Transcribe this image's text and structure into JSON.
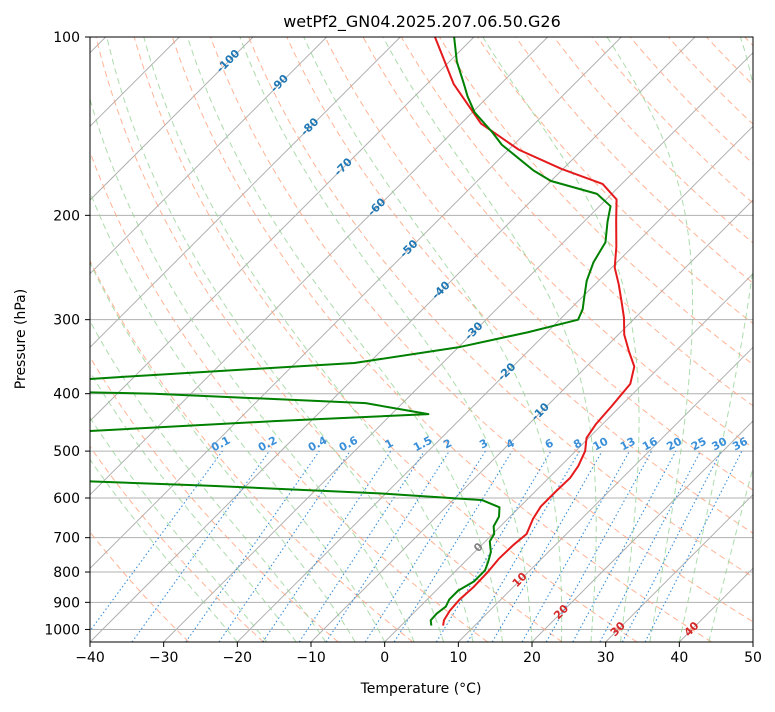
{
  "chart_data": {
    "type": "line",
    "subtype": "skew-t log-p diagram",
    "title": "wetPf2_GN04.2025.207.06.50.G26",
    "xlabel": "Temperature (°C)",
    "ylabel": "Pressure (hPa)",
    "xlim": [
      -40,
      50
    ],
    "ylim": [
      1050,
      100
    ],
    "y_scale": "log",
    "x_ticks": [
      -40,
      -30,
      -20,
      -10,
      0,
      10,
      20,
      30,
      40,
      50
    ],
    "y_ticks": [
      100,
      200,
      300,
      400,
      500,
      600,
      700,
      800,
      900,
      1000
    ],
    "grid": true,
    "series": [
      {
        "id": "temperature",
        "color": "#e41a1c",
        "points": [
          [
            5.7,
            985
          ],
          [
            5.1,
            965
          ],
          [
            4.6,
            930
          ],
          [
            4.4,
            890
          ],
          [
            4.6,
            850
          ],
          [
            4.5,
            800
          ],
          [
            4.2,
            760
          ],
          [
            4.3,
            720
          ],
          [
            4.6,
            690
          ],
          [
            3.4,
            650
          ],
          [
            2.8,
            620
          ],
          [
            2.8,
            585
          ],
          [
            2.9,
            555
          ],
          [
            2.4,
            530
          ],
          [
            1.3,
            500
          ],
          [
            -0.3,
            475
          ],
          [
            -0.9,
            450
          ],
          [
            -1.2,
            420
          ],
          [
            -1.7,
            385
          ],
          [
            -3.5,
            360
          ],
          [
            -6.2,
            340
          ],
          [
            -9.2,
            318
          ],
          [
            -11.5,
            298
          ],
          [
            -14,
            280
          ],
          [
            -16.7,
            262
          ],
          [
            -19.6,
            245
          ],
          [
            -22.2,
            226
          ],
          [
            -25.8,
            204
          ],
          [
            -28.6,
            188
          ],
          [
            -32.6,
            177
          ],
          [
            -40.2,
            167
          ],
          [
            -48.6,
            155
          ],
          [
            -57.3,
            140
          ],
          [
            -66.4,
            120
          ],
          [
            -75.3,
            100
          ]
        ]
      },
      {
        "id": "dewpoint",
        "color": "#008000",
        "points": [
          [
            4.1,
            985
          ],
          [
            3.3,
            965
          ],
          [
            3.2,
            940
          ],
          [
            3.5,
            915
          ],
          [
            3.0,
            890
          ],
          [
            3.0,
            860
          ],
          [
            3.9,
            830
          ],
          [
            3.9,
            795
          ],
          [
            3.2,
            770
          ],
          [
            2.2,
            740
          ],
          [
            0.6,
            710
          ],
          [
            0.2,
            690
          ],
          [
            -0.9,
            670
          ],
          [
            -1.5,
            645
          ],
          [
            -2.7,
            622
          ],
          [
            -6,
            605
          ],
          [
            -20,
            590
          ],
          [
            -45,
            572
          ],
          [
            -70,
            558
          ],
          [
            -95,
            544
          ],
          [
            -105,
            535
          ],
          [
            -85,
            475
          ],
          [
            -45,
            445
          ],
          [
            -25,
            433
          ],
          [
            -35,
            415
          ],
          [
            -65,
            400
          ],
          [
            -95,
            393
          ],
          [
            -72,
            375
          ],
          [
            -42,
            355
          ],
          [
            -30,
            334
          ],
          [
            -22.6,
            315
          ],
          [
            -17.5,
            300
          ],
          [
            -18.3,
            288
          ],
          [
            -19.7,
            275
          ],
          [
            -21.6,
            258
          ],
          [
            -23.2,
            240
          ],
          [
            -24.3,
            222
          ],
          [
            -26.8,
            205
          ],
          [
            -28.5,
            193
          ],
          [
            -32,
            184
          ],
          [
            -40,
            175
          ],
          [
            -43.8,
            168
          ],
          [
            -47.6,
            160
          ],
          [
            -51.6,
            152
          ],
          [
            -54.5,
            145
          ],
          [
            -59.7,
            134
          ],
          [
            -62.8,
            126
          ],
          [
            -65,
            120
          ],
          [
            -69,
            110
          ],
          [
            -72.7,
            100
          ]
        ]
      }
    ],
    "reference_lines": {
      "isotherm_color": "#b0b0b0",
      "dry_adiabat_color": "#ffa07a",
      "moist_adiabat_color": "#90d090",
      "mixing_ratio_color": "#3a8fd9",
      "dry_adiabat_label_color": "#d62728",
      "isotherm_label_color": "#1f77b4",
      "isotherm_labels": [
        -100,
        -90,
        -80,
        -70,
        -60,
        -50,
        -40,
        -30,
        -20,
        -10,
        0,
        10,
        20,
        30,
        40
      ],
      "mixing_ratio_labels": [
        "0.1",
        "0.2",
        "0.4",
        "0.6",
        "1",
        "1.5",
        "2",
        "3",
        "4",
        "6",
        "8",
        "10",
        "13",
        "16",
        "20",
        "25",
        "30",
        "36"
      ],
      "mixing_ratio_values": [
        0.1,
        0.2,
        0.4,
        0.6,
        1,
        1.5,
        2,
        3,
        4,
        6,
        8,
        10,
        13,
        16,
        20,
        25,
        30,
        36
      ],
      "mixing_ratio_top_hpa": 500
    }
  }
}
